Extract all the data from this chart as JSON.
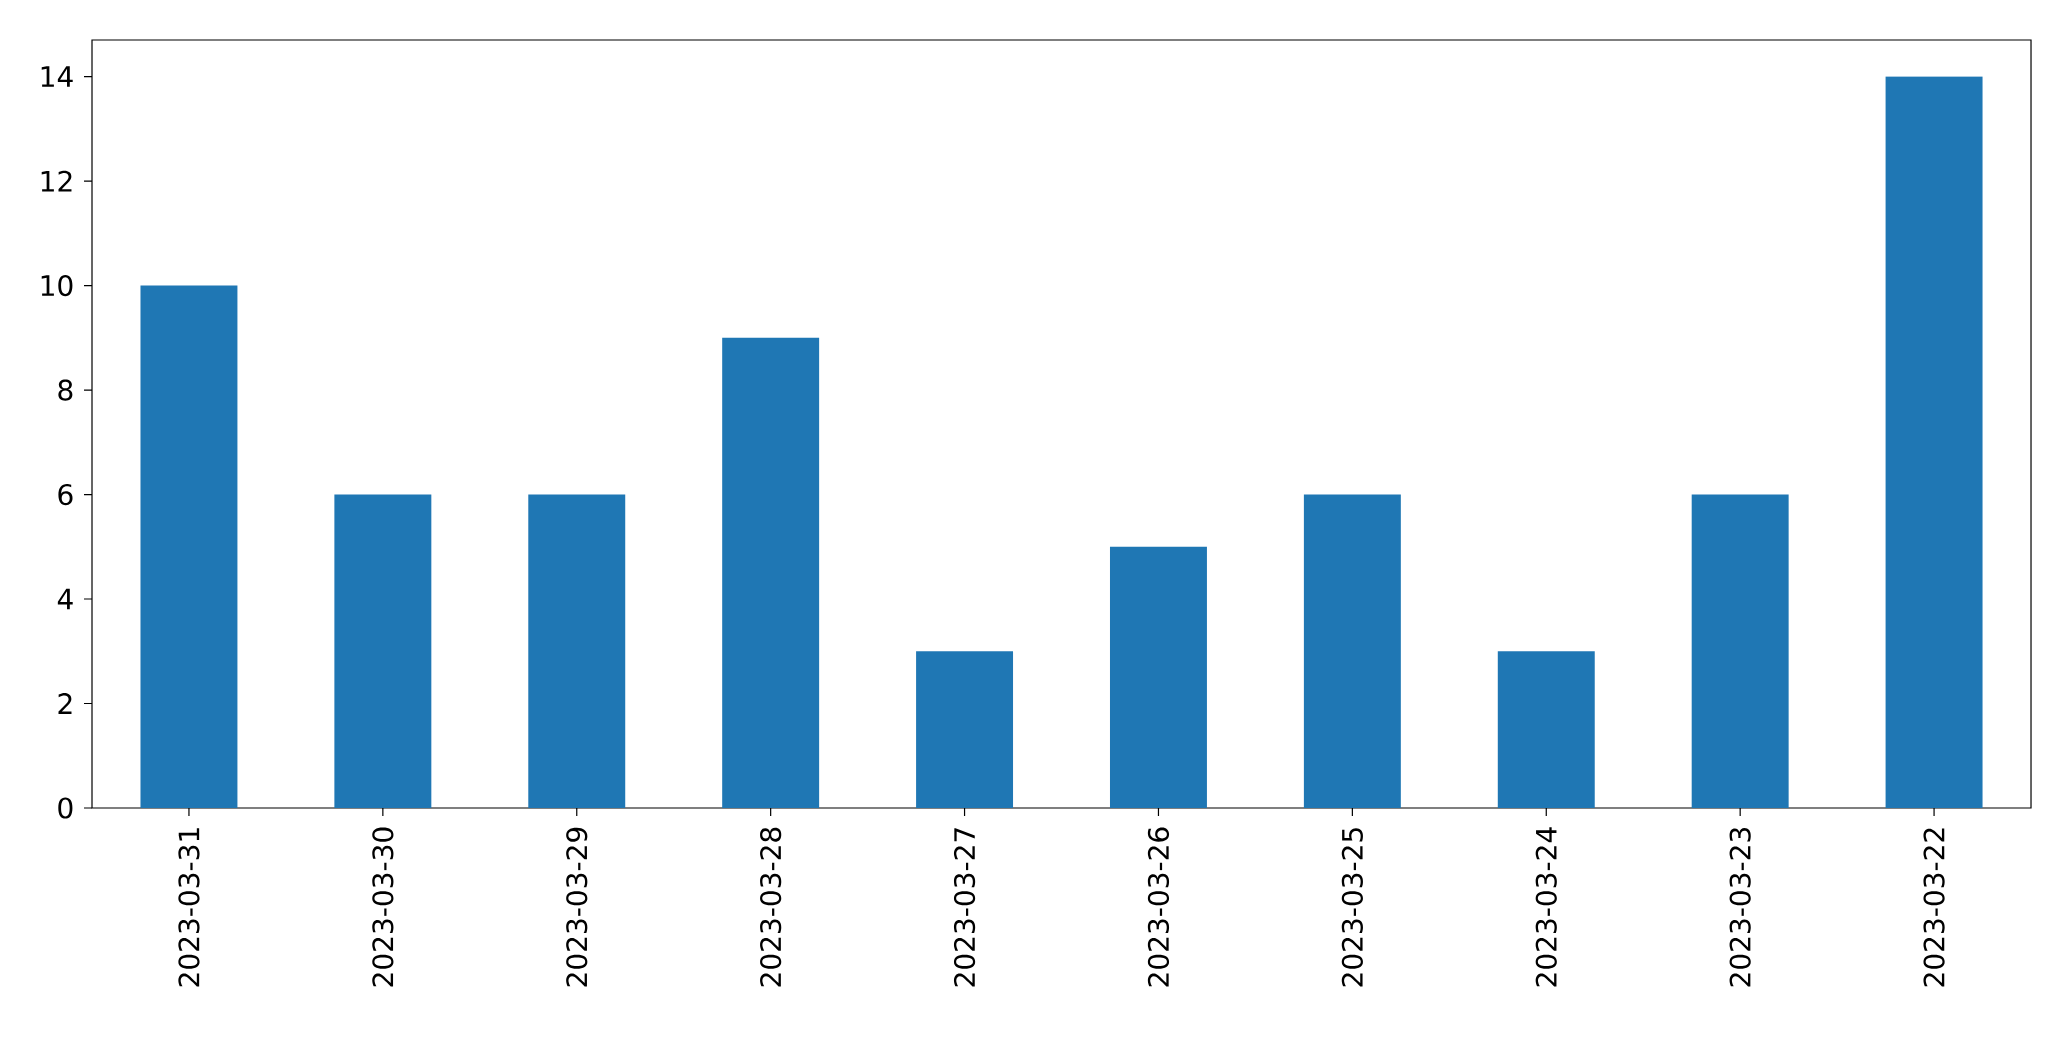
{
  "chart_data": {
    "type": "bar",
    "categories": [
      "2023-03-31",
      "2023-03-30",
      "2023-03-29",
      "2023-03-28",
      "2023-03-27",
      "2023-03-26",
      "2023-03-25",
      "2023-03-24",
      "2023-03-23",
      "2023-03-22"
    ],
    "values": [
      10,
      6,
      6,
      9,
      3,
      5,
      6,
      3,
      6,
      14
    ],
    "color": "#1f77b4",
    "ylim": [
      0,
      14.7
    ],
    "yticks": [
      0,
      2,
      4,
      6,
      8,
      10,
      12,
      14
    ]
  }
}
